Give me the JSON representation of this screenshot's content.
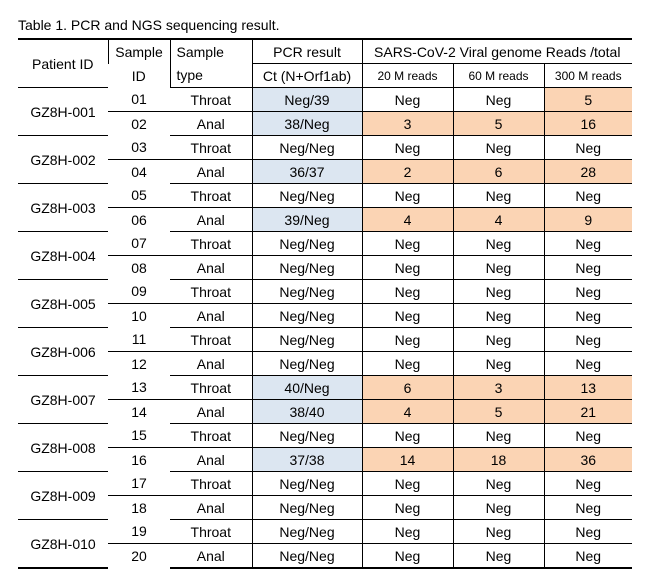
{
  "caption": "Table 1. PCR and NGS sequencing result.",
  "header": {
    "patient_id": "Patient ID",
    "sample_id": [
      "Sample",
      "ID"
    ],
    "sample_type": [
      "Sample",
      "type"
    ],
    "pcr": "PCR result",
    "ct": "Ct (N+Orf1ab)",
    "reads": "SARS-CoV-2 Viral genome Reads /total",
    "reads_cols": [
      "20 M reads",
      "60 M reads",
      "300 M reads"
    ]
  },
  "pcr_highlight": "#dce6f1",
  "reads_highlight": "#fbd4b4",
  "patients": [
    {
      "id": "GZ8H-001",
      "samples": [
        [
          "01",
          "Throat",
          "Neg/39",
          "Neg",
          "Neg",
          "5"
        ],
        [
          "02",
          "Anal",
          "38/Neg",
          "3",
          "5",
          "16"
        ]
      ]
    },
    {
      "id": "GZ8H-002",
      "samples": [
        [
          "03",
          "Throat",
          "Neg/Neg",
          "Neg",
          "Neg",
          "Neg"
        ],
        [
          "04",
          "Anal",
          "36/37",
          "2",
          "6",
          "28"
        ]
      ]
    },
    {
      "id": "GZ8H-003",
      "samples": [
        [
          "05",
          "Throat",
          "Neg/Neg",
          "Neg",
          "Neg",
          "Neg"
        ],
        [
          "06",
          "Anal",
          "39/Neg",
          "4",
          "4",
          "9"
        ]
      ]
    },
    {
      "id": "GZ8H-004",
      "samples": [
        [
          "07",
          "Throat",
          "Neg/Neg",
          "Neg",
          "Neg",
          "Neg"
        ],
        [
          "08",
          "Anal",
          "Neg/Neg",
          "Neg",
          "Neg",
          "Neg"
        ]
      ]
    },
    {
      "id": "GZ8H-005",
      "samples": [
        [
          "09",
          "Throat",
          "Neg/Neg",
          "Neg",
          "Neg",
          "Neg"
        ],
        [
          "10",
          "Anal",
          "Neg/Neg",
          "Neg",
          "Neg",
          "Neg"
        ]
      ]
    },
    {
      "id": "GZ8H-006",
      "samples": [
        [
          "11",
          "Throat",
          "Neg/Neg",
          "Neg",
          "Neg",
          "Neg"
        ],
        [
          "12",
          "Anal",
          "Neg/Neg",
          "Neg",
          "Neg",
          "Neg"
        ]
      ]
    },
    {
      "id": "GZ8H-007",
      "samples": [
        [
          "13",
          "Throat",
          "40/Neg",
          "6",
          "3",
          "13"
        ],
        [
          "14",
          "Anal",
          "38/40",
          "4",
          "5",
          "21"
        ]
      ]
    },
    {
      "id": "GZ8H-008",
      "samples": [
        [
          "15",
          "Throat",
          "Neg/Neg",
          "Neg",
          "Neg",
          "Neg"
        ],
        [
          "16",
          "Anal",
          "37/38",
          "14",
          "18",
          "36"
        ]
      ]
    },
    {
      "id": "GZ8H-009",
      "samples": [
        [
          "17",
          "Throat",
          "Neg/Neg",
          "Neg",
          "Neg",
          "Neg"
        ],
        [
          "18",
          "Anal",
          "Neg/Neg",
          "Neg",
          "Neg",
          "Neg"
        ]
      ]
    },
    {
      "id": "GZ8H-010",
      "samples": [
        [
          "19",
          "Throat",
          "Neg/Neg",
          "Neg",
          "Neg",
          "Neg"
        ],
        [
          "20",
          "Anal",
          "Neg/Neg",
          "Neg",
          "Neg",
          "Neg"
        ]
      ]
    }
  ]
}
